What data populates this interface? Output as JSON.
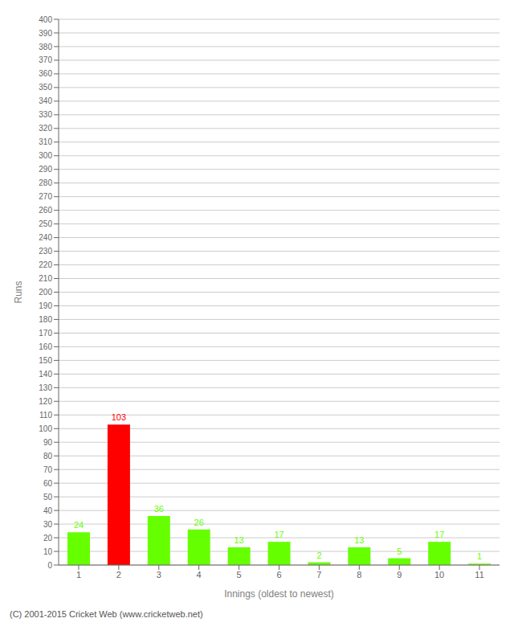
{
  "chart_data": {
    "type": "bar",
    "categories": [
      "1",
      "2",
      "3",
      "4",
      "5",
      "6",
      "7",
      "8",
      "9",
      "10",
      "11"
    ],
    "values": [
      24,
      103,
      36,
      26,
      13,
      17,
      2,
      13,
      5,
      17,
      1
    ],
    "colors": [
      "#66ff00",
      "#ff0000",
      "#66ff00",
      "#66ff00",
      "#66ff00",
      "#66ff00",
      "#66ff00",
      "#66ff00",
      "#66ff00",
      "#66ff00",
      "#66ff00"
    ],
    "xlabel": "Innings (oldest to newest)",
    "ylabel": "Runs",
    "ylim": [
      0,
      400
    ],
    "yticks": [
      0,
      10,
      20,
      30,
      40,
      50,
      60,
      70,
      80,
      90,
      100,
      110,
      120,
      130,
      140,
      150,
      160,
      170,
      180,
      190,
      200,
      210,
      220,
      230,
      240,
      250,
      260,
      270,
      280,
      290,
      300,
      310,
      320,
      330,
      340,
      350,
      360,
      370,
      380,
      390,
      400
    ],
    "grid": true,
    "data_labels": true,
    "annotations": [
      "(C) 2001-2015 Cricket Web (www.cricketweb.net)"
    ]
  }
}
